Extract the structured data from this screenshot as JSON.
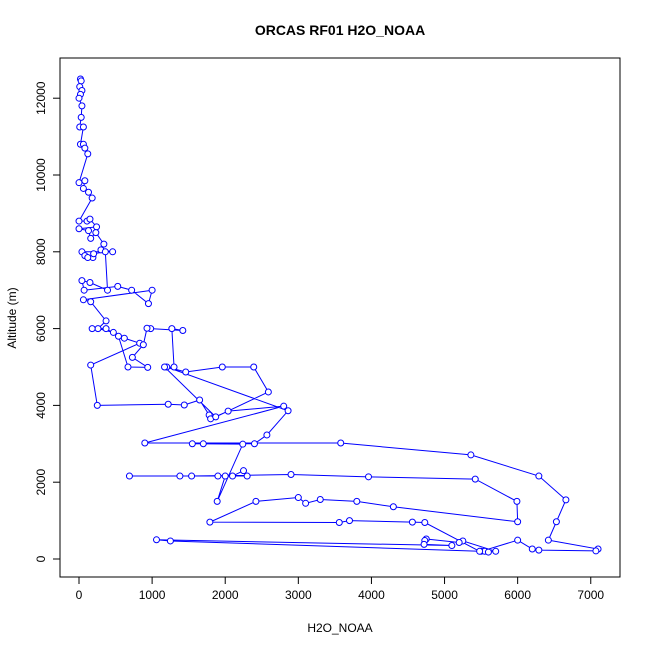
{
  "chart_data": {
    "type": "line",
    "title": "ORCAS RF01 H2O_NOAA",
    "xlabel": "H2O_NOAA",
    "ylabel": "Altitude (m)",
    "color": "#0000ff",
    "marker": "open-circle",
    "x": [
      20,
      30,
      10,
      40,
      20,
      0,
      40,
      30,
      10,
      60,
      20,
      60,
      80,
      120,
      0,
      80,
      60,
      130,
      180,
      0,
      110,
      150,
      240,
      0,
      130,
      160,
      230,
      340,
      300,
      460,
      40,
      80,
      190,
      120,
      200,
      360,
      390,
      150,
      40,
      70,
      530,
      720,
      950,
      1000,
      60,
      160,
      370,
      260,
      470,
      620,
      830,
      160,
      250,
      1220,
      1440,
      1650,
      1780,
      1800,
      2040,
      2800,
      900,
      3580,
      5360,
      6290,
      6660,
      6530,
      6420,
      7100,
      7070,
      6290,
      6200,
      6000,
      5500,
      5550,
      5600,
      5700,
      5250,
      5200,
      4750,
      4730,
      4720,
      5100,
      1060,
      1250,
      5480,
      4730,
      4560,
      3700,
      3560,
      1790,
      2420,
      3000,
      3100,
      3300,
      3800,
      4300,
      6000,
      5990,
      5420,
      3960,
      2900,
      1540,
      1380,
      690,
      1900,
      2100,
      2250,
      2300,
      2000,
      1890,
      2240,
      1550,
      1700,
      2400,
      2570,
      2860,
      1200,
      1460,
      1960,
      2390,
      2590,
      1870,
      1170,
      1300,
      1270,
      1420,
      980,
      930,
      880,
      730,
      940,
      670,
      540,
      370,
      180
    ],
    "values": [
      12500,
      12450,
      12300,
      12200,
      12100,
      12000,
      11800,
      11500,
      11250,
      11250,
      10800,
      10800,
      10700,
      10550,
      9800,
      9850,
      9650,
      9550,
      9400,
      8800,
      8800,
      8850,
      8650,
      8600,
      8550,
      8350,
      8500,
      8200,
      8050,
      8000,
      8000,
      7900,
      7850,
      7850,
      7950,
      8000,
      7000,
      7200,
      7250,
      7000,
      7100,
      7000,
      6650,
      7000,
      6750,
      6700,
      6200,
      6000,
      5900,
      5750,
      5620,
      5050,
      4000,
      4030,
      4010,
      4140,
      3750,
      3650,
      3850,
      3980,
      3020,
      3020,
      2710,
      2160,
      1540,
      970,
      490,
      260,
      210,
      230,
      260,
      490,
      200,
      200,
      180,
      200,
      470,
      430,
      520,
      480,
      380,
      350,
      500,
      470,
      200,
      950,
      960,
      1000,
      950,
      960,
      1500,
      1600,
      1450,
      1550,
      1500,
      1360,
      970,
      1500,
      2080,
      2140,
      2200,
      2160,
      2160,
      2160,
      2160,
      2160,
      2300,
      2160,
      2160,
      1500,
      2990,
      3000,
      3000,
      3000,
      3230,
      3860,
      5000,
      4870,
      5000,
      5000,
      4350,
      3700,
      5000,
      5000,
      6000,
      5950,
      6000,
      6010,
      5580,
      5250,
      4990,
      5000,
      5800,
      6000,
      6000
    ],
    "xlim": [
      -260,
      7400
    ],
    "ylim": [
      -469,
      13047
    ],
    "xticks": [
      0,
      1000,
      2000,
      3000,
      4000,
      5000,
      6000,
      7000
    ],
    "yticks": [
      0,
      2000,
      4000,
      6000,
      8000,
      10000,
      12000
    ]
  }
}
